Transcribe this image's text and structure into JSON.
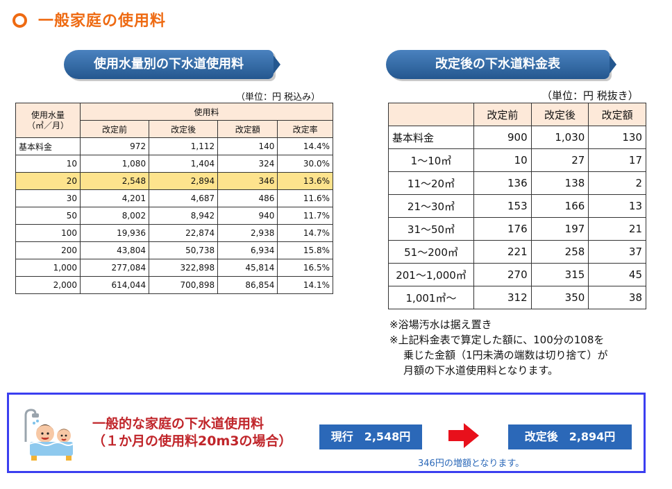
{
  "page": {
    "title": "一般家庭の使用料"
  },
  "left": {
    "ribbon": "使用水量別の下水道使用料",
    "unit": "（単位：円 税込み）",
    "header": {
      "col0": "使用水量\n（㎥／月）",
      "group": "使用料",
      "cols": [
        "改定前",
        "改定後",
        "改定額",
        "改定率"
      ]
    },
    "rows": [
      [
        "基本料金",
        "972",
        "1,112",
        "140",
        "14.4%"
      ],
      [
        "10",
        "1,080",
        "1,404",
        "324",
        "30.0%"
      ],
      [
        "20",
        "2,548",
        "2,894",
        "346",
        "13.6%"
      ],
      [
        "30",
        "4,201",
        "4,687",
        "486",
        "11.6%"
      ],
      [
        "50",
        "8,002",
        "8,942",
        "940",
        "11.7%"
      ],
      [
        "100",
        "19,936",
        "22,874",
        "2,938",
        "14.7%"
      ],
      [
        "200",
        "43,804",
        "50,738",
        "6,934",
        "15.8%"
      ],
      [
        "1,000",
        "277,084",
        "322,898",
        "45,814",
        "16.5%"
      ],
      [
        "2,000",
        "614,044",
        "700,898",
        "86,854",
        "14.1%"
      ]
    ],
    "highlight_row": 2,
    "highlight_color": "#fde38d"
  },
  "right": {
    "ribbon": "改定後の下水道料金表",
    "unit": "（単位：円 税抜き）",
    "header": [
      "",
      "改定前",
      "改定後",
      "改定額"
    ],
    "rows": [
      [
        "基本料金",
        "900",
        "1,030",
        "130"
      ],
      [
        "1～10㎥",
        "10",
        "27",
        "17"
      ],
      [
        "11～20㎥",
        "136",
        "138",
        "2"
      ],
      [
        "21～30㎥",
        "153",
        "166",
        "13"
      ],
      [
        "31～50㎥",
        "176",
        "197",
        "21"
      ],
      [
        "51～200㎥",
        "221",
        "258",
        "37"
      ],
      [
        "201～1,000㎥",
        "270",
        "315",
        "45"
      ],
      [
        "1,001㎥～",
        "312",
        "350",
        "38"
      ]
    ],
    "notes": [
      "※浴場汚水は据え置き",
      "※上記料金表で算定した額に、100分の108を",
      "乗じた金額（1円未満の端数は切り捨て）が",
      "月額の下水道使用料となります。"
    ]
  },
  "summary": {
    "title_line1": "一般的な家庭の下水道使用料",
    "title_line2": "（１か月の使用料20m3の場合）",
    "current": "現行　2,548円",
    "revised": "改定後　2,894円",
    "increase": "346円の増額となります。",
    "icons": [
      "bath-family-icon",
      "right-arrow-icon"
    ]
  },
  "colors": {
    "title": "#ee6a12",
    "ribbon": "#24578f",
    "header_bg": "#fde9d9",
    "box_border": "#3b3ff0",
    "summary_title": "#c0252a",
    "pill": "#2b68b8",
    "arrow": "#e8101b"
  }
}
